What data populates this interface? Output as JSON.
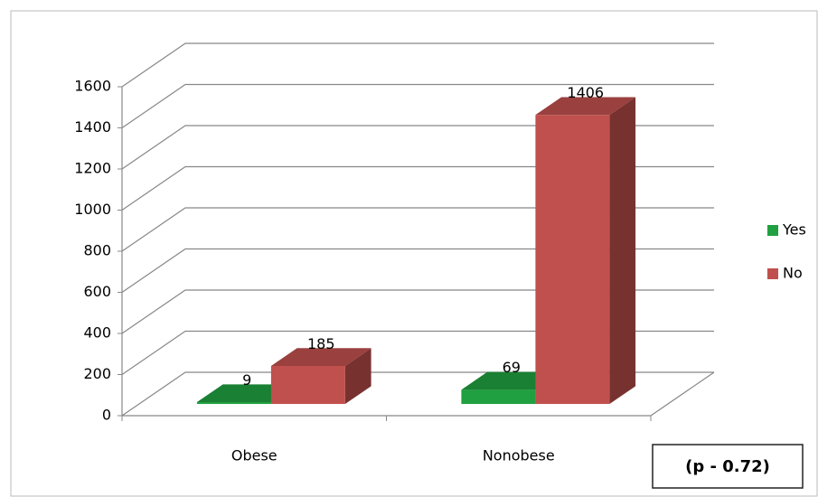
{
  "chart_data": {
    "type": "bar3d",
    "categories": [
      "Obese",
      "Nonobese"
    ],
    "series": [
      {
        "name": "Yes",
        "color": "#20a040",
        "values": [
          9,
          69
        ]
      },
      {
        "name": "No",
        "color": "#c0504d",
        "values": [
          185,
          1406
        ]
      }
    ],
    "ylim": [
      0,
      1600
    ],
    "yticks": [
      0,
      200,
      400,
      600,
      800,
      1000,
      1200,
      1400,
      1600
    ],
    "grid": true,
    "legend": "right",
    "annotation": "(p - 0.72)"
  }
}
